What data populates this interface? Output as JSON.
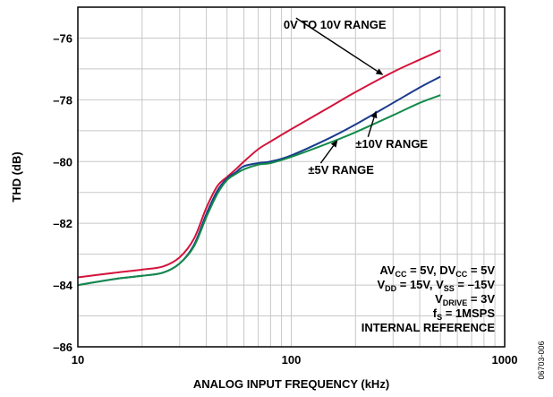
{
  "chart_data": {
    "type": "line",
    "xlabel": "ANALOG INPUT FREQUENCY (kHz)",
    "ylabel": "THD (dB)",
    "x_scale": "log",
    "xlim": [
      10,
      1000
    ],
    "ylim": [
      -86,
      -75
    ],
    "x_ticks": [
      10,
      100,
      1000
    ],
    "x_tick_labels": [
      "10",
      "100",
      "1000"
    ],
    "y_ticks": [
      -86,
      -84,
      -82,
      -80,
      -78,
      -76
    ],
    "y_tick_labels": [
      "–86",
      "–84",
      "–82",
      "–80",
      "–78",
      "–76"
    ],
    "grid": true,
    "series": [
      {
        "name": "0V TO 10V RANGE",
        "color": "#d4143c",
        "x": [
          10,
          15,
          20,
          25,
          30,
          35,
          40,
          45,
          50,
          55,
          60,
          70,
          80,
          100,
          150,
          200,
          300,
          400,
          500
        ],
        "y": [
          -83.75,
          -83.6,
          -83.5,
          -83.4,
          -83.1,
          -82.5,
          -81.5,
          -80.8,
          -80.5,
          -80.25,
          -80.0,
          -79.6,
          -79.35,
          -78.95,
          -78.25,
          -77.75,
          -77.1,
          -76.7,
          -76.4
        ]
      },
      {
        "name": "±10V RANGE",
        "color": "#1a3a8c",
        "x": [
          10,
          15,
          20,
          25,
          30,
          35,
          40,
          45,
          50,
          55,
          60,
          70,
          80,
          100,
          150,
          200,
          300,
          400,
          500
        ],
        "y": [
          -84.0,
          -83.8,
          -83.7,
          -83.6,
          -83.3,
          -82.7,
          -81.7,
          -80.95,
          -80.55,
          -80.35,
          -80.15,
          -80.05,
          -80.0,
          -79.8,
          -79.25,
          -78.8,
          -78.1,
          -77.6,
          -77.25
        ]
      },
      {
        "name": "±5V RANGE",
        "color": "#128a4a",
        "x": [
          10,
          15,
          20,
          25,
          30,
          35,
          40,
          45,
          50,
          55,
          60,
          70,
          80,
          100,
          150,
          200,
          300,
          400,
          500
        ],
        "y": [
          -84.0,
          -83.8,
          -83.7,
          -83.6,
          -83.3,
          -82.75,
          -81.8,
          -81.05,
          -80.6,
          -80.4,
          -80.25,
          -80.1,
          -80.05,
          -79.85,
          -79.4,
          -79.05,
          -78.5,
          -78.1,
          -77.85
        ]
      }
    ],
    "annotations": [
      {
        "text": "0V TO 10V RANGE",
        "x": 92,
        "y": -75.7,
        "arrow_to": [
          270,
          -77.2
        ],
        "anchor": "start"
      },
      {
        "text": "±10V RANGE",
        "x": 200,
        "y": -79.55,
        "arrow_to": [
          250,
          -78.35
        ],
        "anchor": "start"
      },
      {
        "text": "±5V RANGE",
        "x": 120,
        "y": -80.4,
        "arrow_to": [
          165,
          -79.3
        ],
        "anchor": "start"
      }
    ],
    "conditions": [
      {
        "parts": [
          {
            "t": "AV"
          },
          {
            "t": "CC",
            "sub": true
          },
          {
            "t": " = 5V, DV"
          },
          {
            "t": "CC",
            "sub": true
          },
          {
            "t": " = 5V"
          }
        ]
      },
      {
        "parts": [
          {
            "t": "V"
          },
          {
            "t": "DD",
            "sub": true
          },
          {
            "t": " = 15V, V"
          },
          {
            "t": "SS",
            "sub": true
          },
          {
            "t": " = –15V"
          }
        ]
      },
      {
        "parts": [
          {
            "t": "V"
          },
          {
            "t": "DRIVE",
            "sub": true
          },
          {
            "t": " = 3V"
          }
        ]
      },
      {
        "parts": [
          {
            "t": "f"
          },
          {
            "t": "S",
            "sub": true
          },
          {
            "t": " = 1MSPS"
          }
        ]
      },
      {
        "parts": [
          {
            "t": "INTERNAL REFERENCE"
          }
        ]
      }
    ],
    "figure_code": "06703-006"
  }
}
